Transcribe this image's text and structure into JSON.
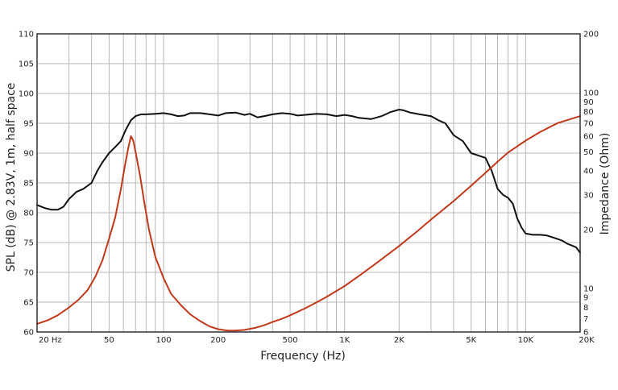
{
  "chart_data": {
    "type": "line",
    "xlabel": "Frequency (Hz)",
    "ylabel": "SPL (dB) @ 2.83V, 1m, half space",
    "y2label": "Impedance (Ohm)",
    "xscale": "log",
    "y2scale": "log",
    "xlim": [
      20,
      20000
    ],
    "ylim": [
      60,
      110
    ],
    "y2lim": [
      6,
      200
    ],
    "grid": true,
    "xticks": [
      {
        "value": 20,
        "label": "20  Hz"
      },
      {
        "value": 50,
        "label": "50"
      },
      {
        "value": 100,
        "label": "100"
      },
      {
        "value": 200,
        "label": "200"
      },
      {
        "value": 500,
        "label": "500"
      },
      {
        "value": 1000,
        "label": "1K"
      },
      {
        "value": 2000,
        "label": "2K"
      },
      {
        "value": 5000,
        "label": "5K"
      },
      {
        "value": 10000,
        "label": "10K"
      },
      {
        "value": 20000,
        "label": "20K"
      }
    ],
    "yticks": [
      {
        "value": 60,
        "label": "60"
      },
      {
        "value": 65,
        "label": "65"
      },
      {
        "value": 70,
        "label": "70"
      },
      {
        "value": 75,
        "label": "75"
      },
      {
        "value": 80,
        "label": "80"
      },
      {
        "value": 85,
        "label": "85"
      },
      {
        "value": 90,
        "label": "90"
      },
      {
        "value": 95,
        "label": "95"
      },
      {
        "value": 100,
        "label": "100"
      },
      {
        "value": 105,
        "label": "105"
      },
      {
        "value": 110,
        "label": "110"
      }
    ],
    "y2ticks": [
      {
        "value": 6,
        "label": "6"
      },
      {
        "value": 7,
        "label": "7"
      },
      {
        "value": 8,
        "label": "8"
      },
      {
        "value": 9,
        "label": "9"
      },
      {
        "value": 10,
        "label": "10"
      },
      {
        "value": 20,
        "label": "20"
      },
      {
        "value": 30,
        "label": "30"
      },
      {
        "value": 40,
        "label": "40"
      },
      {
        "value": 50,
        "label": "50"
      },
      {
        "value": 60,
        "label": "60"
      },
      {
        "value": 70,
        "label": "70"
      },
      {
        "value": 80,
        "label": "80"
      },
      {
        "value": 90,
        "label": "90"
      },
      {
        "value": 100,
        "label": "100"
      },
      {
        "value": 200,
        "label": "200"
      }
    ],
    "series": [
      {
        "axis": "left",
        "color": "#111111",
        "x": [
          20,
          22,
          24,
          26,
          28,
          30,
          33,
          36,
          40,
          43,
          46,
          50,
          54,
          58,
          62,
          66,
          70,
          75,
          80,
          90,
          100,
          110,
          120,
          130,
          140,
          160,
          180,
          200,
          220,
          250,
          280,
          300,
          330,
          360,
          400,
          450,
          500,
          550,
          600,
          700,
          800,
          900,
          1000,
          1100,
          1200,
          1400,
          1600,
          1800,
          2000,
          2100,
          2300,
          2600,
          3000,
          3300,
          3600,
          4000,
          4500,
          5000,
          5600,
          6000,
          6500,
          7000,
          7500,
          8000,
          8500,
          9000,
          9500,
          10000,
          11000,
          12000,
          13000,
          14000,
          15000,
          16000,
          17000,
          18000,
          19000,
          20000
        ],
        "values": [
          81.3,
          80.8,
          80.5,
          80.5,
          81.0,
          82.3,
          83.5,
          84.0,
          85.0,
          87.0,
          88.5,
          90.0,
          91.0,
          92.0,
          94.0,
          95.5,
          96.2,
          96.5,
          96.5,
          96.6,
          96.7,
          96.5,
          96.2,
          96.3,
          96.7,
          96.7,
          96.5,
          96.3,
          96.7,
          96.8,
          96.4,
          96.6,
          96.0,
          96.2,
          96.5,
          96.7,
          96.6,
          96.3,
          96.4,
          96.6,
          96.5,
          96.2,
          96.4,
          96.2,
          95.9,
          95.7,
          96.2,
          96.9,
          97.3,
          97.2,
          96.8,
          96.5,
          96.2,
          95.5,
          95.0,
          93.0,
          92.0,
          90.0,
          89.5,
          89.2,
          87.0,
          84.0,
          83.0,
          82.5,
          81.5,
          79.0,
          77.5,
          76.5,
          76.3,
          76.3,
          76.2,
          75.9,
          75.6,
          75.3,
          74.8,
          74.5,
          74.2,
          73.3
        ]
      },
      {
        "axis": "right",
        "color": "#c0391b",
        "x": [
          20,
          23,
          26,
          30,
          34,
          38,
          42,
          46,
          50,
          54,
          58,
          61,
          64,
          66,
          68,
          70,
          74,
          78,
          83,
          90,
          100,
          110,
          125,
          140,
          160,
          180,
          200,
          225,
          250,
          280,
          320,
          360,
          400,
          450,
          500,
          600,
          700,
          800,
          1000,
          1200,
          1500,
          2000,
          2500,
          3000,
          4000,
          5000,
          6000,
          7000,
          8000,
          10000,
          12000,
          15000,
          20000
        ],
        "values": [
          6.6,
          6.9,
          7.3,
          8.0,
          8.8,
          9.8,
          11.5,
          14.0,
          18.0,
          23.0,
          32.0,
          42.0,
          53.0,
          60.0,
          57.0,
          50.0,
          38.0,
          28.0,
          20.0,
          14.5,
          11.3,
          9.4,
          8.2,
          7.4,
          6.8,
          6.4,
          6.2,
          6.1,
          6.1,
          6.15,
          6.3,
          6.5,
          6.75,
          7.0,
          7.3,
          7.9,
          8.5,
          9.1,
          10.3,
          11.6,
          13.5,
          16.5,
          19.5,
          22.5,
          28.0,
          33.5,
          39.0,
          44.5,
          49.5,
          57.0,
          63.0,
          70.0,
          76.0
        ]
      }
    ]
  }
}
